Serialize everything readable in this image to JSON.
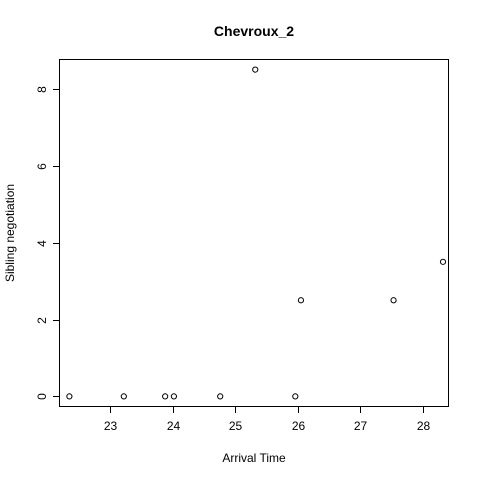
{
  "chart_data": {
    "type": "scatter",
    "title": "Chevroux_2",
    "xlabel": "Arrival Time",
    "ylabel": "Sibling negotiation",
    "xlim": [
      22.2,
      28.4
    ],
    "ylim": [
      -0.25,
      8.75
    ],
    "xticks": [
      23,
      24,
      25,
      26,
      27,
      28
    ],
    "yticks": [
      0,
      2,
      4,
      6,
      8
    ],
    "grid": false,
    "points": [
      {
        "x": 22.35,
        "y": 0
      },
      {
        "x": 23.22,
        "y": 0
      },
      {
        "x": 23.88,
        "y": 0
      },
      {
        "x": 24.02,
        "y": 0
      },
      {
        "x": 24.76,
        "y": 0
      },
      {
        "x": 25.32,
        "y": 8.5
      },
      {
        "x": 25.96,
        "y": 0
      },
      {
        "x": 26.05,
        "y": 2.5
      },
      {
        "x": 27.53,
        "y": 2.5
      },
      {
        "x": 28.32,
        "y": 3.5
      }
    ]
  }
}
